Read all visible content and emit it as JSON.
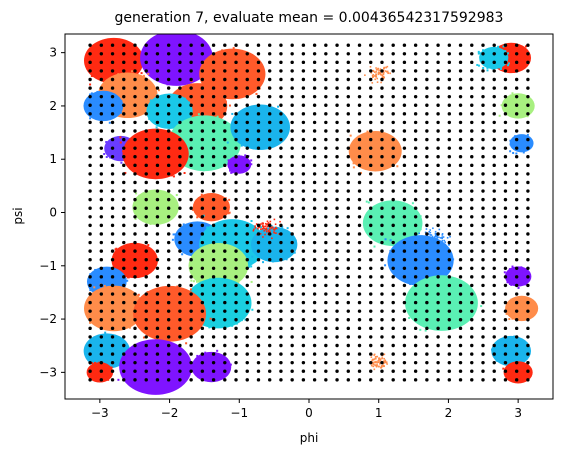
{
  "chart_data": {
    "type": "scatter",
    "title": "generation 7, evaluate mean = 0.00436542317592983",
    "xlabel": "phi",
    "ylabel": "psi",
    "xlim": [
      -3.5,
      3.5
    ],
    "ylim": [
      -3.5,
      3.35
    ],
    "xticks": [
      -3,
      -2,
      -1,
      0,
      1,
      2,
      3
    ],
    "yticks": [
      -3,
      -2,
      -1,
      0,
      1,
      2,
      3
    ],
    "grid": false,
    "legend": "none",
    "black_grid": {
      "range": [
        -3.14,
        3.14
      ],
      "count": 40,
      "color": "#000000"
    },
    "clusters": [
      {
        "x": -2.8,
        "y": 2.85,
        "r": 0.45,
        "color": "#ff2a12"
      },
      {
        "x": -1.9,
        "y": 2.9,
        "r": 0.55,
        "color": "#7f14ff"
      },
      {
        "x": -1.1,
        "y": 2.6,
        "r": 0.5,
        "color": "#ff5a2a"
      },
      {
        "x": -2.6,
        "y": 2.2,
        "r": 0.45,
        "color": "#ff8c4a"
      },
      {
        "x": -1.6,
        "y": 2.0,
        "r": 0.45,
        "color": "#ff5a2a"
      },
      {
        "x": -2.95,
        "y": 2.0,
        "r": 0.3,
        "color": "#2a8cff"
      },
      {
        "x": -2.0,
        "y": 1.9,
        "r": 0.35,
        "color": "#1ac8e8"
      },
      {
        "x": -1.5,
        "y": 1.3,
        "r": 0.55,
        "color": "#5af0b4"
      },
      {
        "x": -0.7,
        "y": 1.6,
        "r": 0.45,
        "color": "#1ab4ec"
      },
      {
        "x": -2.7,
        "y": 1.2,
        "r": 0.25,
        "color": "#6a3cff"
      },
      {
        "x": -2.2,
        "y": 1.1,
        "r": 0.5,
        "color": "#ff2a12"
      },
      {
        "x": -1.0,
        "y": 0.9,
        "r": 0.18,
        "color": "#7f14ff"
      },
      {
        "x": -2.2,
        "y": 0.1,
        "r": 0.35,
        "color": "#a8f080"
      },
      {
        "x": -1.4,
        "y": 0.1,
        "r": 0.28,
        "color": "#ff5a2a"
      },
      {
        "x": -1.6,
        "y": -0.5,
        "r": 0.35,
        "color": "#2a8cff"
      },
      {
        "x": -1.1,
        "y": -0.6,
        "r": 0.5,
        "color": "#1ac8e8"
      },
      {
        "x": -0.5,
        "y": -0.6,
        "r": 0.35,
        "color": "#1ab4ec"
      },
      {
        "x": -1.3,
        "y": -1.0,
        "r": 0.45,
        "color": "#a8f080"
      },
      {
        "x": -2.5,
        "y": -0.9,
        "r": 0.35,
        "color": "#ff2a12"
      },
      {
        "x": -1.3,
        "y": -1.7,
        "r": 0.5,
        "color": "#1ad0e0"
      },
      {
        "x": -2.9,
        "y": -1.3,
        "r": 0.3,
        "color": "#2a8cff"
      },
      {
        "x": -2.8,
        "y": -1.8,
        "r": 0.45,
        "color": "#ff8c4a"
      },
      {
        "x": -2.0,
        "y": -1.9,
        "r": 0.55,
        "color": "#ff5a2a"
      },
      {
        "x": -2.9,
        "y": -2.6,
        "r": 0.35,
        "color": "#1ab4ec"
      },
      {
        "x": -2.2,
        "y": -2.9,
        "r": 0.55,
        "color": "#7f14ff"
      },
      {
        "x": -1.4,
        "y": -2.9,
        "r": 0.3,
        "color": "#7f14ff"
      },
      {
        "x": -3.0,
        "y": -3.0,
        "r": 0.2,
        "color": "#ff2a12"
      },
      {
        "x": 0.95,
        "y": 1.15,
        "r": 0.4,
        "color": "#ff8c4a"
      },
      {
        "x": 1.2,
        "y": -0.2,
        "r": 0.45,
        "color": "#5af0b4"
      },
      {
        "x": 1.6,
        "y": -0.9,
        "r": 0.5,
        "color": "#2a8cff"
      },
      {
        "x": 1.9,
        "y": -1.7,
        "r": 0.55,
        "color": "#5af0b4"
      },
      {
        "x": 2.9,
        "y": 2.9,
        "r": 0.3,
        "color": "#ff2a12"
      },
      {
        "x": 2.65,
        "y": 2.9,
        "r": 0.22,
        "color": "#1ac8e8"
      },
      {
        "x": 3.0,
        "y": 2.0,
        "r": 0.25,
        "color": "#a8f080"
      },
      {
        "x": 3.05,
        "y": 1.3,
        "r": 0.18,
        "color": "#2a8cff"
      },
      {
        "x": 3.0,
        "y": -1.2,
        "r": 0.2,
        "color": "#7f14ff"
      },
      {
        "x": 3.05,
        "y": -1.8,
        "r": 0.25,
        "color": "#ff8c4a"
      },
      {
        "x": 2.9,
        "y": -2.6,
        "r": 0.3,
        "color": "#1ab4ec"
      },
      {
        "x": 3.0,
        "y": -3.0,
        "r": 0.22,
        "color": "#ff2a12"
      }
    ],
    "sparse": [
      {
        "x": 1.0,
        "y": 2.6,
        "r": 0.22,
        "color": "#ff8c4a"
      },
      {
        "x": 1.0,
        "y": -2.8,
        "r": 0.2,
        "color": "#ff8c4a"
      },
      {
        "x": 1.8,
        "y": -0.5,
        "r": 0.3,
        "color": "#2a8cff"
      },
      {
        "x": -0.6,
        "y": -0.3,
        "r": 0.25,
        "color": "#ff2a12"
      }
    ]
  }
}
